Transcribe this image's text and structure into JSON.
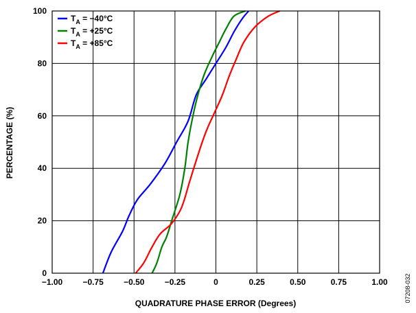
{
  "chart_data": {
    "type": "line",
    "title": "",
    "xlabel": "QUADRATURE PHASE ERROR (Degrees)",
    "ylabel": "PERCENTAGE (%)",
    "xlim": [
      -1.0,
      1.0
    ],
    "ylim": [
      0,
      100
    ],
    "x_ticks": [
      -1.0,
      -0.75,
      -0.5,
      -0.25,
      0,
      0.25,
      0.5,
      0.75,
      1.0
    ],
    "x_tick_labels": [
      "−1.00",
      "−0.75",
      "−0.50",
      "−0.25",
      "0",
      "0.25",
      "0.50",
      "0.75",
      "1.00"
    ],
    "y_ticks": [
      0,
      20,
      40,
      60,
      80,
      100
    ],
    "y_tick_labels": [
      "0",
      "20",
      "40",
      "60",
      "80",
      "100"
    ],
    "grid": true,
    "legend_position": "top-left",
    "series": [
      {
        "name_main": "T",
        "name_sub": "A",
        "name_rest": " = −40°C",
        "color": "#0000ff",
        "points": [
          [
            -0.69,
            0
          ],
          [
            -0.64,
            8
          ],
          [
            -0.57,
            16
          ],
          [
            -0.53,
            22
          ],
          [
            -0.48,
            28
          ],
          [
            -0.4,
            34
          ],
          [
            -0.31,
            42
          ],
          [
            -0.24,
            50
          ],
          [
            -0.17,
            58
          ],
          [
            -0.12,
            68
          ],
          [
            -0.06,
            74
          ],
          [
            0.0,
            80
          ],
          [
            0.06,
            86
          ],
          [
            0.11,
            92
          ],
          [
            0.16,
            97
          ],
          [
            0.2,
            100
          ]
        ]
      },
      {
        "name_main": "T",
        "name_sub": "A",
        "name_rest": " = +25°C",
        "color": "#008000",
        "points": [
          [
            -0.39,
            0
          ],
          [
            -0.36,
            4
          ],
          [
            -0.33,
            10
          ],
          [
            -0.3,
            14
          ],
          [
            -0.27,
            20
          ],
          [
            -0.22,
            30
          ],
          [
            -0.19,
            40
          ],
          [
            -0.17,
            50
          ],
          [
            -0.14,
            60
          ],
          [
            -0.11,
            68
          ],
          [
            -0.07,
            76
          ],
          [
            -0.02,
            83
          ],
          [
            0.02,
            88
          ],
          [
            0.06,
            93
          ],
          [
            0.11,
            98
          ],
          [
            0.18,
            100
          ]
        ]
      },
      {
        "name_main": "T",
        "name_sub": "A",
        "name_rest": " = +85°C",
        "color": "#ff0000",
        "points": [
          [
            -0.49,
            0
          ],
          [
            -0.44,
            4
          ],
          [
            -0.39,
            10
          ],
          [
            -0.34,
            15
          ],
          [
            -0.27,
            19
          ],
          [
            -0.21,
            25
          ],
          [
            -0.16,
            35
          ],
          [
            -0.11,
            45
          ],
          [
            -0.06,
            54
          ],
          [
            -0.01,
            61
          ],
          [
            0.04,
            68
          ],
          [
            0.08,
            75
          ],
          [
            0.12,
            81
          ],
          [
            0.17,
            88
          ],
          [
            0.24,
            94
          ],
          [
            0.32,
            98
          ],
          [
            0.39,
            100
          ]
        ]
      }
    ]
  },
  "figure_id": "07208-032"
}
